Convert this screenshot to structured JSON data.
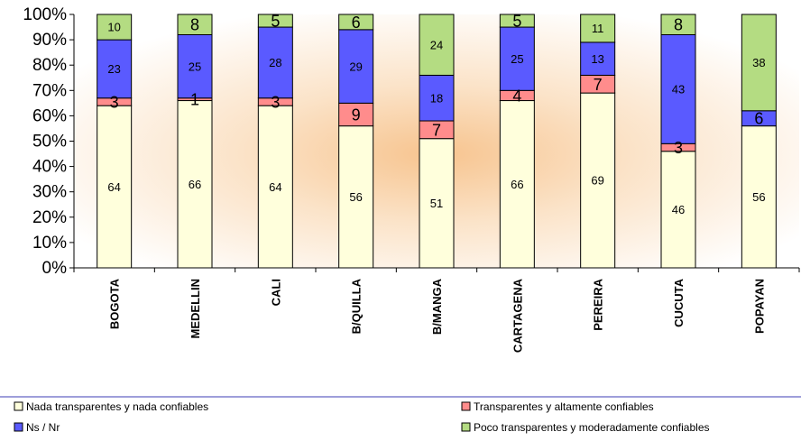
{
  "chart_data": {
    "type": "bar",
    "stacked": true,
    "normalized": true,
    "categories": [
      "BOGOTA",
      "MEDELLIN",
      "CALI",
      "B/QUILLA",
      "B/MANGA",
      "CARTAGENA",
      "PEREIRA",
      "CUCUTA",
      "POPAYAN"
    ],
    "series": [
      {
        "name": "Nada transparentes y nada confiables",
        "color": "#ffffdc",
        "values": [
          64,
          66,
          64,
          56,
          51,
          66,
          69,
          46,
          56
        ]
      },
      {
        "name": "Transparentes y altamente confiables",
        "color": "#ff8c8c",
        "values": [
          3,
          1,
          3,
          9,
          7,
          4,
          7,
          3,
          null
        ]
      },
      {
        "name": "Ns / Nr",
        "color": "#5a5aff",
        "values": [
          23,
          25,
          28,
          29,
          18,
          25,
          13,
          43,
          6
        ]
      },
      {
        "name": "Poco transparentes y moderadamente confiables",
        "color": "#b4dc82",
        "values": [
          10,
          8,
          5,
          6,
          24,
          5,
          11,
          8,
          38
        ]
      }
    ],
    "y_ticks": [
      "0%",
      "10%",
      "20%",
      "30%",
      "40%",
      "50%",
      "60%",
      "70%",
      "80%",
      "90%",
      "100%"
    ],
    "ylim": [
      0,
      100
    ],
    "legend_position": "bottom",
    "grid": false
  }
}
